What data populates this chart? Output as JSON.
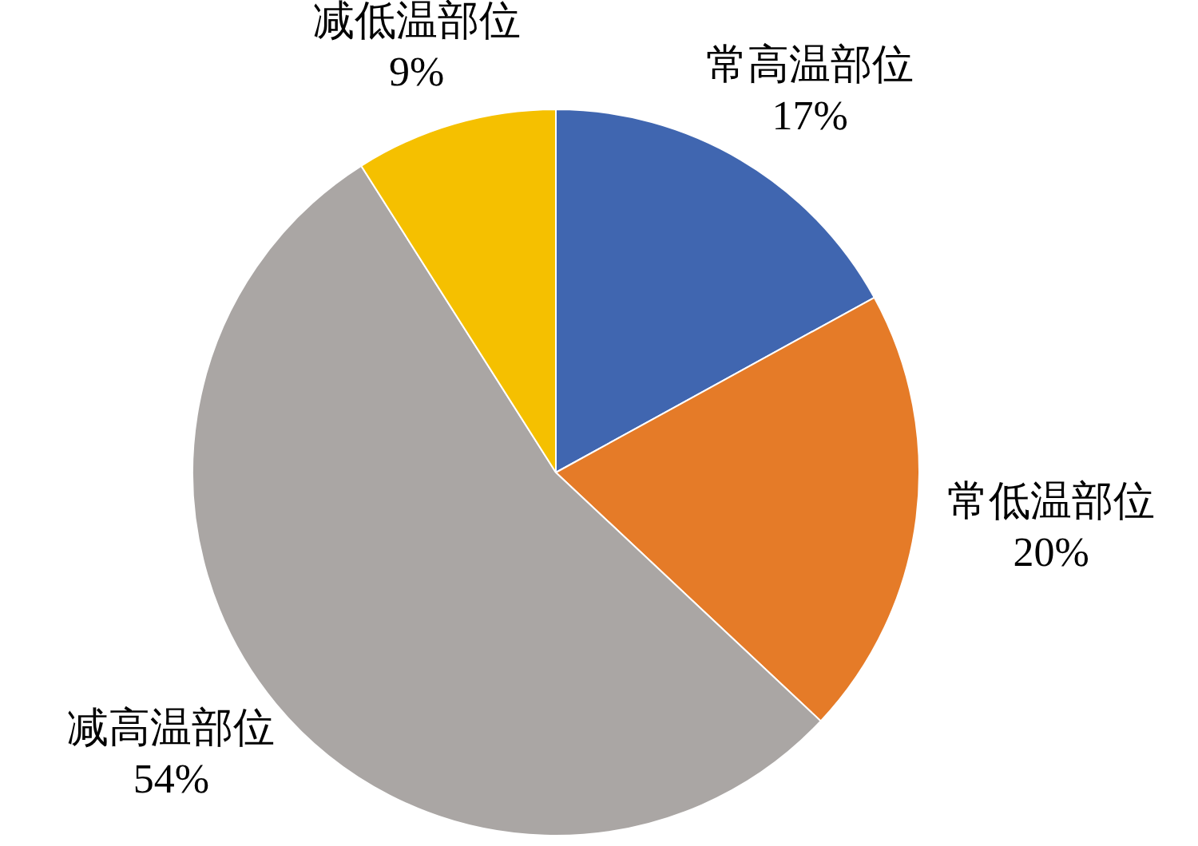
{
  "chart_data": {
    "type": "pie",
    "categories": [
      "常高温部位",
      "常低温部位",
      "减高温部位",
      "减低温部位"
    ],
    "values": [
      17,
      20,
      54,
      9
    ],
    "colors": [
      "#4066b0",
      "#e57b28",
      "#aaa6a4",
      "#f5c000"
    ],
    "value_labels": [
      "17%",
      "20%",
      "54%",
      "9%"
    ],
    "legend": false
  }
}
